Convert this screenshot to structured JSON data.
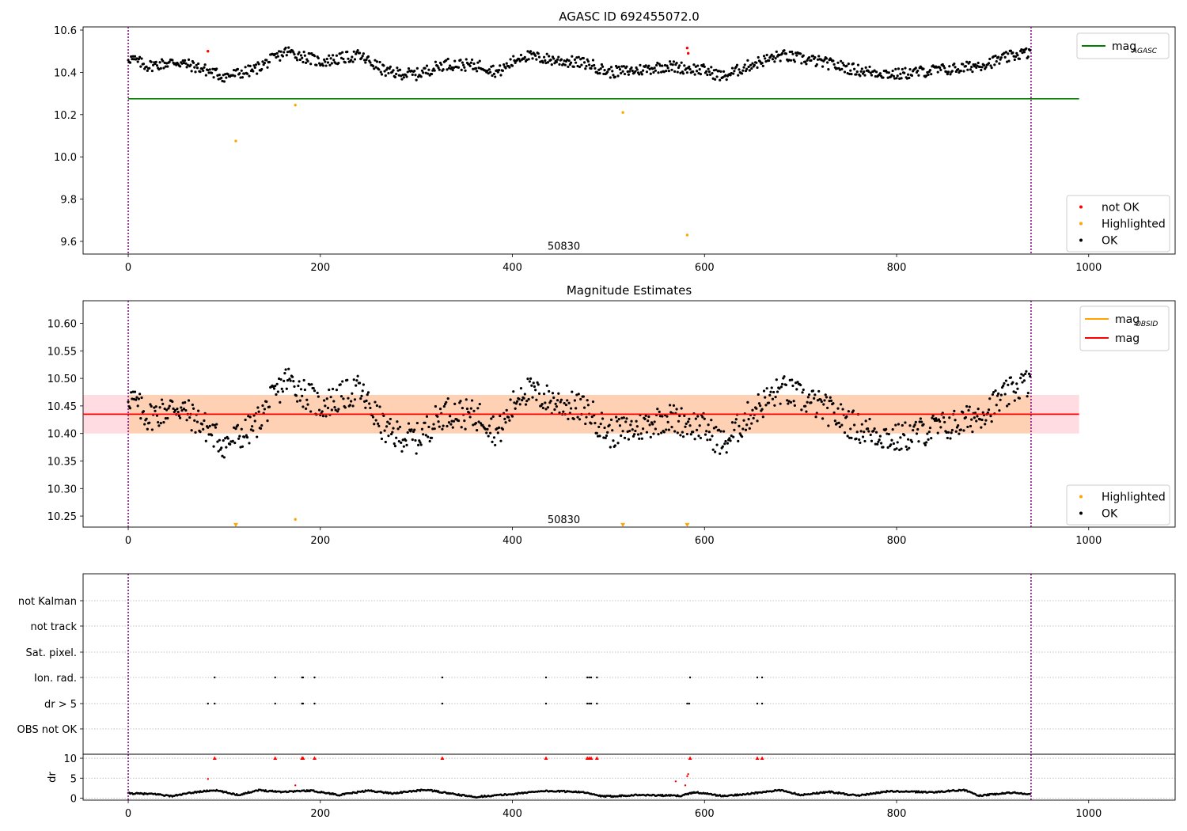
{
  "chart_data": [
    {
      "type": "scatter",
      "title": "AGASC ID 692455072.0",
      "xlim": [
        -47,
        1090
      ],
      "ylim": [
        9.54,
        10.615
      ],
      "xticks": [
        0,
        200,
        400,
        600,
        800,
        1000
      ],
      "yticks": [
        9.6,
        9.8,
        10.0,
        10.2,
        10.4,
        10.6
      ],
      "annotation": {
        "text": "50830",
        "x": 470,
        "y": 9.575
      },
      "obs_bounds": [
        0,
        940
      ],
      "reference_line": {
        "name": "mag_AGASC",
        "value": 10.275,
        "x": [
          0,
          990
        ],
        "color": "#008000"
      },
      "legends": [
        {
          "pos": "upper-right",
          "items": [
            {
              "label": "mag",
              "subscript": "AGASC",
              "kind": "line",
              "color": "#008000"
            }
          ]
        },
        {
          "pos": "lower-right",
          "items": [
            {
              "label": "not OK",
              "kind": "dot",
              "color": "#ff0000"
            },
            {
              "label": "Highlighted",
              "kind": "dot",
              "color": "#ffa500"
            },
            {
              "label": "OK",
              "kind": "dot",
              "color": "#000000"
            }
          ]
        }
      ],
      "series": [
        {
          "name": "not OK",
          "color": "#ff0000",
          "points": [
            [
              83,
              10.5
            ],
            [
              582,
              10.515
            ],
            [
              583,
              10.49
            ]
          ]
        },
        {
          "name": "Highlighted",
          "color": "#ffa500",
          "points": [
            [
              112,
              10.075
            ],
            [
              174,
              10.245
            ],
            [
              515,
              10.21
            ],
            [
              582,
              9.63
            ]
          ]
        },
        {
          "name": "OK",
          "color": "#000000",
          "n": 940,
          "anchors": [
            [
              0,
              10.47
            ],
            [
              20,
              10.43
            ],
            [
              50,
              10.45
            ],
            [
              75,
              10.42
            ],
            [
              100,
              10.38
            ],
            [
              130,
              10.41
            ],
            [
              165,
              10.5
            ],
            [
              200,
              10.45
            ],
            [
              240,
              10.48
            ],
            [
              270,
              10.4
            ],
            [
              300,
              10.39
            ],
            [
              330,
              10.44
            ],
            [
              370,
              10.43
            ],
            [
              385,
              10.4
            ],
            [
              410,
              10.48
            ],
            [
              440,
              10.46
            ],
            [
              480,
              10.44
            ],
            [
              500,
              10.4
            ],
            [
              530,
              10.41
            ],
            [
              560,
              10.43
            ],
            [
              600,
              10.41
            ],
            [
              620,
              10.38
            ],
            [
              650,
              10.44
            ],
            [
              680,
              10.48
            ],
            [
              720,
              10.45
            ],
            [
              760,
              10.41
            ],
            [
              800,
              10.39
            ],
            [
              840,
              10.41
            ],
            [
              870,
              10.42
            ],
            [
              900,
              10.45
            ],
            [
              930,
              10.49
            ],
            [
              940,
              10.49
            ]
          ]
        }
      ]
    },
    {
      "type": "scatter",
      "title": "Magnitude Estimates",
      "xlim": [
        -47,
        1090
      ],
      "ylim": [
        10.23,
        10.641
      ],
      "xticks": [
        0,
        200,
        400,
        600,
        800,
        1000
      ],
      "yticks": [
        10.25,
        10.3,
        10.35,
        10.4,
        10.45,
        10.5,
        10.55,
        10.6
      ],
      "annotation": {
        "text": "50830",
        "x": 470,
        "y": 10.243
      },
      "obs_bounds": [
        0,
        940
      ],
      "mag_line": {
        "name": "mag",
        "value": 10.435,
        "x": [
          -47,
          990
        ],
        "color": "#ff0000"
      },
      "mag_band": {
        "low": 10.4,
        "high": 10.47,
        "x": [
          -47,
          990
        ],
        "color": "#ffc0cb"
      },
      "mag_obsid_band": {
        "low": 10.4,
        "high": 10.47,
        "x": [
          0,
          940
        ],
        "color": "#ffa500"
      },
      "legends": [
        {
          "pos": "upper-right",
          "items": [
            {
              "label": "mag",
              "subscript": "OBSID",
              "kind": "line",
              "color": "#ffa500"
            },
            {
              "label": "mag",
              "kind": "line",
              "color": "#ff0000"
            }
          ]
        },
        {
          "pos": "lower-right",
          "items": [
            {
              "label": "Highlighted",
              "kind": "dot",
              "color": "#ffa500"
            },
            {
              "label": "OK",
              "kind": "dot",
              "color": "#000000"
            }
          ]
        }
      ],
      "series": [
        {
          "name": "Highlighted",
          "color": "#ffa500",
          "points": [
            [
              174,
              10.244
            ]
          ]
        },
        {
          "name": "Highlighted (off scale)",
          "color": "#ffa500",
          "marker": "triangle-down",
          "points": [
            [
              112,
              10.233
            ],
            [
              515,
              10.233
            ],
            [
              582,
              10.233
            ]
          ]
        },
        {
          "name": "OK",
          "color": "#000000",
          "n": 940,
          "anchors": [
            [
              0,
              10.47
            ],
            [
              20,
              10.43
            ],
            [
              50,
              10.45
            ],
            [
              75,
              10.42
            ],
            [
              100,
              10.38
            ],
            [
              130,
              10.41
            ],
            [
              165,
              10.5
            ],
            [
              200,
              10.45
            ],
            [
              240,
              10.48
            ],
            [
              270,
              10.4
            ],
            [
              300,
              10.39
            ],
            [
              330,
              10.44
            ],
            [
              370,
              10.43
            ],
            [
              385,
              10.4
            ],
            [
              410,
              10.48
            ],
            [
              440,
              10.46
            ],
            [
              480,
              10.44
            ],
            [
              500,
              10.4
            ],
            [
              530,
              10.41
            ],
            [
              560,
              10.43
            ],
            [
              600,
              10.41
            ],
            [
              620,
              10.38
            ],
            [
              650,
              10.44
            ],
            [
              680,
              10.48
            ],
            [
              720,
              10.45
            ],
            [
              760,
              10.41
            ],
            [
              800,
              10.39
            ],
            [
              840,
              10.41
            ],
            [
              870,
              10.42
            ],
            [
              900,
              10.45
            ],
            [
              930,
              10.49
            ],
            [
              940,
              10.49
            ]
          ]
        }
      ]
    },
    {
      "type": "scatter",
      "xlim": [
        -47,
        1090
      ],
      "xticks": [
        0,
        200,
        400,
        600,
        800,
        1000
      ],
      "obs_bounds": [
        0,
        940
      ],
      "flag_rows": [
        "not Kalman",
        "not track",
        "Sat. pixel.",
        "Ion. rad.",
        "dr > 5",
        "OBS not OK"
      ],
      "flags": {
        "Ion. rad.": [
          90,
          153,
          181,
          182,
          194,
          327,
          435,
          478,
          480,
          482,
          488,
          585,
          655,
          660
        ],
        "dr > 5": [
          83,
          90,
          153,
          181,
          182,
          194,
          327,
          435,
          478,
          480,
          482,
          488,
          582,
          584,
          655,
          660
        ]
      },
      "dr": {
        "ylabel": "dr",
        "ylim": [
          -0.5,
          11
        ],
        "yticks": [
          0,
          5,
          10
        ],
        "clip_value": 10,
        "outliers": [
          [
            83,
            4.8
          ],
          [
            174,
            3.2
          ],
          [
            570,
            4.2
          ],
          [
            580,
            3.2
          ],
          [
            582,
            5.5
          ],
          [
            583,
            6.0
          ]
        ],
        "clipped": [
          90,
          153,
          181,
          182,
          194,
          327,
          435,
          478,
          480,
          482,
          488,
          585,
          655,
          660
        ],
        "n": 940,
        "anchors": [
          [
            0,
            1.2
          ],
          [
            30,
            1.0
          ],
          [
            45,
            0.5
          ],
          [
            70,
            1.5
          ],
          [
            90,
            2.0
          ],
          [
            115,
            0.8
          ],
          [
            135,
            2.0
          ],
          [
            160,
            1.6
          ],
          [
            190,
            1.9
          ],
          [
            220,
            0.8
          ],
          [
            250,
            1.9
          ],
          [
            275,
            1.2
          ],
          [
            310,
            2.1
          ],
          [
            345,
            0.8
          ],
          [
            360,
            0.3
          ],
          [
            400,
            1.0
          ],
          [
            430,
            1.8
          ],
          [
            470,
            1.6
          ],
          [
            495,
            0.4
          ],
          [
            530,
            0.8
          ],
          [
            575,
            0.6
          ],
          [
            590,
            1.5
          ],
          [
            620,
            0.5
          ],
          [
            650,
            1.2
          ],
          [
            680,
            2.0
          ],
          [
            700,
            0.8
          ],
          [
            730,
            1.6
          ],
          [
            760,
            0.6
          ],
          [
            790,
            1.7
          ],
          [
            840,
            1.5
          ],
          [
            870,
            2.1
          ],
          [
            885,
            0.6
          ],
          [
            920,
            1.4
          ],
          [
            940,
            1.0
          ]
        ]
      }
    }
  ]
}
